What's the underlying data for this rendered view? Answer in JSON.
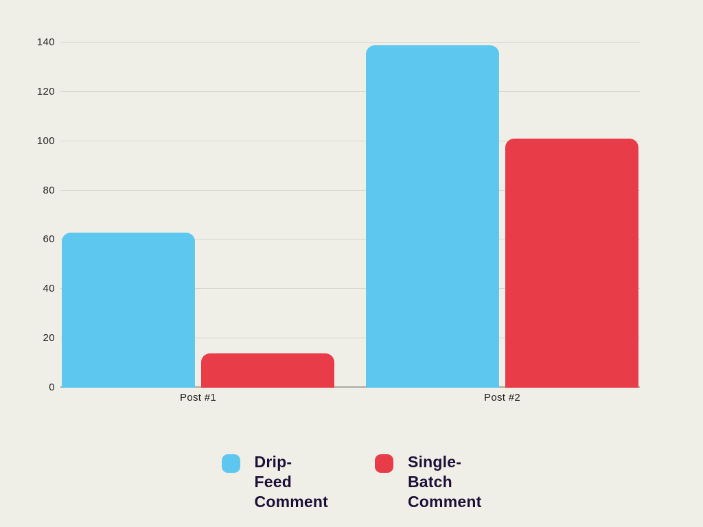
{
  "chart_data": {
    "type": "bar",
    "title": "",
    "categories": [
      "Post #1",
      "Post #2"
    ],
    "series": [
      {
        "name": "Drip-Feed Comment",
        "color": "#5DC7F0",
        "values": [
          63,
          139
        ]
      },
      {
        "name": "Single-Batch Comment",
        "color": "#E83C49",
        "values": [
          14,
          101
        ]
      }
    ],
    "xlabel": "",
    "ylabel": "",
    "ylim": [
      0,
      140
    ],
    "yticks": [
      0,
      20,
      40,
      60,
      80,
      100,
      120,
      140
    ],
    "grid": true,
    "legend_position": "bottom",
    "background_color": "#F0EFE7",
    "gridline_color": "#D7D5CC",
    "axis_line_color": "#ABA89F",
    "tick_text_color": "#242424",
    "legend_text_color": "#1C1038"
  }
}
